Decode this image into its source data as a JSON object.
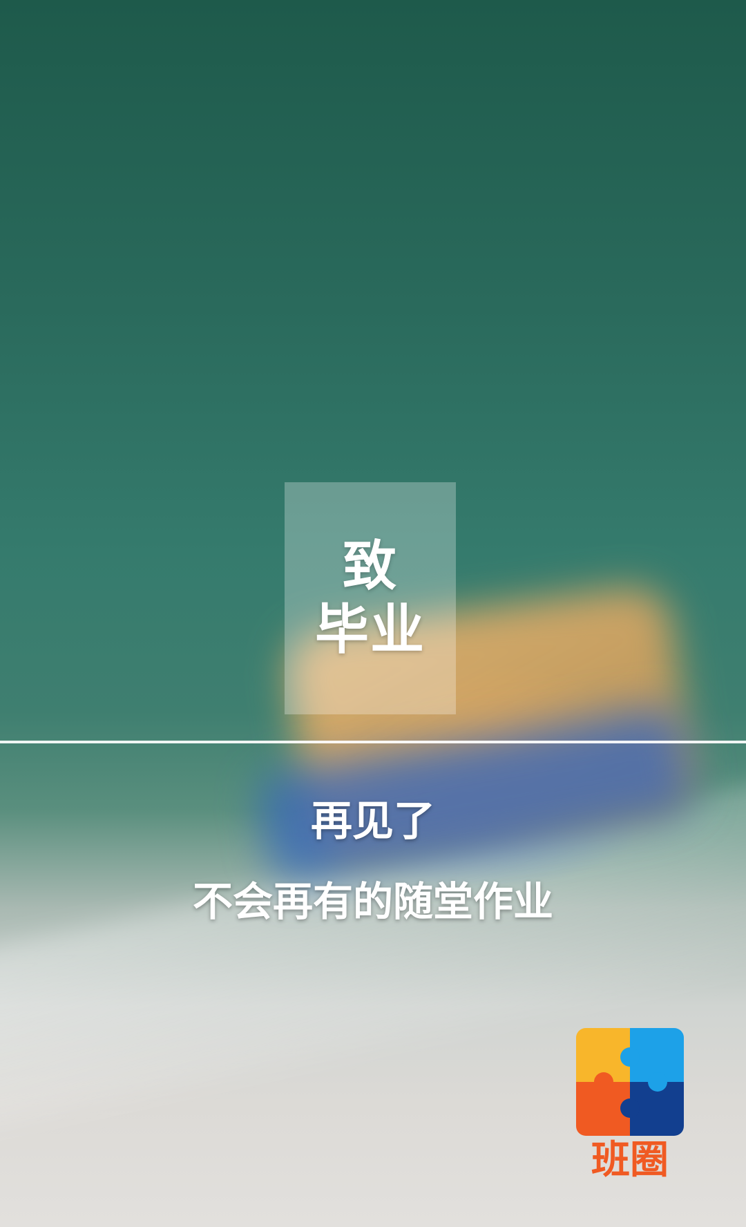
{
  "title_box": {
    "line1": "致",
    "line2": "毕业"
  },
  "messages": {
    "line1": "再见了",
    "line2": "不会再有的随堂作业"
  },
  "logo": {
    "icon": "puzzle-icon",
    "text": "班圈",
    "colors": {
      "yellow": "#f8b62b",
      "light_blue": "#1da1e8",
      "orange": "#f05a22",
      "dark_blue": "#123f8f",
      "text": "#f05a22"
    }
  }
}
